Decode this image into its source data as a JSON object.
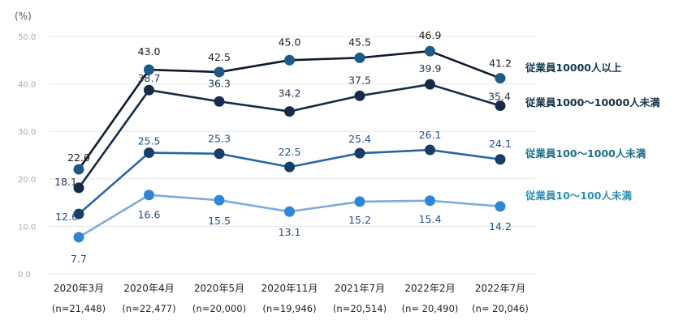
{
  "chart_data": {
    "type": "line",
    "unit_label": "(%)",
    "ylim": [
      0,
      50
    ],
    "yticks": [
      "0.0",
      "10.0",
      "20.0",
      "30.0",
      "40.0",
      "50.0"
    ],
    "categories": [
      "2020年3月",
      "2020年4月",
      "2020年5月",
      "2020年11月",
      "2021年7月",
      "2022年2月",
      "2022年7月"
    ],
    "sample_sizes": [
      "(n=21,448)",
      "(n=22,477)",
      "(n=20,000)",
      "(n=19,946)",
      "(n=20,514)",
      "(n= 20,490)",
      "(n= 20,046)"
    ],
    "series": [
      {
        "name": "従業員10000人以上",
        "values": [
          22.0,
          43.0,
          42.5,
          45.0,
          45.5,
          46.9,
          41.2
        ],
        "labels": [
          "22.0",
          "43.0",
          "42.5",
          "45.0",
          "45.5",
          "46.9",
          "41.2"
        ],
        "line_color": "#0d1b2a",
        "marker_color": "#1d5b84",
        "label_color": "#1a1a1a",
        "legend_color": "#0e3a50"
      },
      {
        "name": "従業員1000〜10000人未満",
        "values": [
          18.1,
          38.7,
          36.3,
          34.2,
          37.5,
          39.9,
          35.4
        ],
        "labels": [
          "18.1",
          "38.7",
          "36.3",
          "34.2",
          "37.5",
          "39.9",
          "35.4"
        ],
        "line_color": "#152b47",
        "marker_color": "#152b47",
        "label_color": "#1e3550",
        "legend_color": "#123049"
      },
      {
        "name": "従業員100〜1000人未満",
        "values": [
          12.6,
          25.5,
          25.3,
          22.5,
          25.4,
          26.1,
          24.1
        ],
        "labels": [
          "12.6",
          "25.5",
          "25.3",
          "22.5",
          "25.4",
          "26.1",
          "24.1"
        ],
        "line_color": "#2565a6",
        "marker_color": "#183d66",
        "label_color": "#1f4f8a",
        "legend_color": "#1d6f8c"
      },
      {
        "name": "従業員10〜100人未満",
        "values": [
          7.7,
          16.6,
          15.5,
          13.1,
          15.2,
          15.4,
          14.2
        ],
        "labels": [
          "7.7",
          "16.6",
          "15.5",
          "13.1",
          "15.2",
          "15.4",
          "14.2"
        ],
        "line_color": "#7fa9dc",
        "marker_color": "#2f86d4",
        "label_color": "#1f4f8a",
        "legend_color": "#2c8fb3"
      }
    ]
  }
}
